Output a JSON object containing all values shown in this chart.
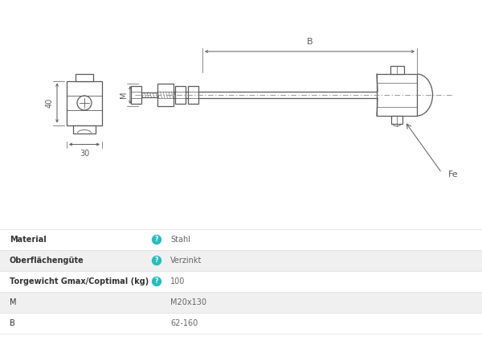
{
  "bg_color": "#ffffff",
  "line_color": "#5a5a5a",
  "dim_color": "#5a5a5a",
  "teal_color": "#2bbcbc",
  "table_separator_color": "#dddddd",
  "table_rows": [
    {
      "label": "Material",
      "icon": true,
      "value": "Stahl",
      "bg": "#ffffff"
    },
    {
      "label": "Oberflächengüte",
      "icon": true,
      "value": "Verzinkt",
      "bg": "#f0f0f0"
    },
    {
      "label": "Torgewicht Gmax/Coptimal (kg)",
      "icon": true,
      "value": "100",
      "bg": "#ffffff"
    },
    {
      "label": "M",
      "icon": false,
      "value": "M20x130",
      "bg": "#f0f0f0"
    },
    {
      "label": "B",
      "icon": false,
      "value": "62-160",
      "bg": "#ffffff"
    }
  ]
}
